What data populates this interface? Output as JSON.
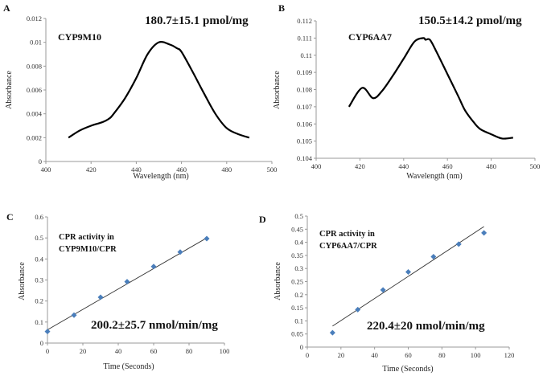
{
  "chart_data": [
    {
      "panel": "A",
      "type": "line",
      "title": "CYP9M10",
      "annotation": "180.7±15.1 pmol/mg",
      "xlabel": "Wavelength  (nm)",
      "ylabel": "Absorbance",
      "xlim": [
        400,
        500
      ],
      "ylim": [
        0,
        0.012
      ],
      "xticks": [
        "400",
        "420",
        "440",
        "460",
        "480",
        "500"
      ],
      "yticks": [
        "0",
        "0.002",
        "0.004",
        "0.006",
        "0.008",
        "0.01",
        "0.012"
      ],
      "x": [
        410,
        415,
        420,
        425,
        428,
        430,
        435,
        440,
        445,
        450,
        455,
        458,
        460,
        465,
        470,
        475,
        480,
        485,
        490
      ],
      "y": [
        0.002,
        0.0026,
        0.003,
        0.0033,
        0.0036,
        0.004,
        0.0053,
        0.007,
        0.009,
        0.01,
        0.0098,
        0.0095,
        0.0092,
        0.0075,
        0.0057,
        0.004,
        0.0028,
        0.0023,
        0.002
      ]
    },
    {
      "panel": "B",
      "type": "line",
      "title": "CYP6AA7",
      "annotation": "150.5±14.2 pmol/mg",
      "xlabel": "Wavelength  (nm)",
      "ylabel": "Absorbance",
      "xlim": [
        400,
        500
      ],
      "ylim": [
        0.104,
        0.112
      ],
      "xticks": [
        "400",
        "420",
        "440",
        "460",
        "480",
        "500"
      ],
      "yticks": [
        "0.104",
        "0.105",
        "0.106",
        "0.107",
        "0.108",
        "0.109",
        "0.11",
        "0.111",
        "0.112"
      ],
      "x": [
        415,
        421,
        426,
        430,
        435,
        440,
        445,
        449,
        450,
        452,
        455,
        460,
        465,
        468,
        472,
        475,
        480,
        485,
        490
      ],
      "y": [
        0.107,
        0.1081,
        0.1075,
        0.1079,
        0.1088,
        0.1098,
        0.1108,
        0.111,
        0.1109,
        0.1109,
        0.1102,
        0.1089,
        0.1076,
        0.1068,
        0.1061,
        0.1057,
        0.1054,
        0.10515,
        0.1052
      ]
    },
    {
      "panel": "C",
      "type": "scatter",
      "title": "CPR activity in",
      "title2": "CYP9M10/CPR",
      "annotation": "200.2±25.7 nmol/min/mg",
      "xlabel": "Time  (Seconds)",
      "ylabel": "Absorbance",
      "xlim": [
        0,
        100
      ],
      "ylim": [
        0,
        0.6
      ],
      "xticks": [
        "0",
        "20",
        "40",
        "60",
        "80",
        "100"
      ],
      "yticks": [
        "0",
        "0.1",
        "0.2",
        "0.3",
        "0.4",
        "0.5",
        "0.6"
      ],
      "x": [
        0,
        15,
        30,
        45,
        60,
        75,
        90
      ],
      "y": [
        0.055,
        0.133,
        0.218,
        0.292,
        0.364,
        0.433,
        0.497
      ],
      "trendline": [
        [
          0,
          0.063
        ],
        [
          90,
          0.5
        ]
      ],
      "marker_color": "#4a7ebb"
    },
    {
      "panel": "D",
      "type": "scatter",
      "title": "CPR activity in",
      "title2": "CYP6AA7/CPR",
      "annotation": "220.4±20 nmol/min/mg",
      "xlabel": "Time  (Seconds)",
      "ylabel": "Absorbance",
      "xlim": [
        0,
        120
      ],
      "ylim": [
        0,
        0.5
      ],
      "xticks": [
        "0",
        "20",
        "40",
        "60",
        "80",
        "100",
        "120"
      ],
      "yticks": [
        "0",
        "0.05",
        "0.1",
        "0.15",
        "0.2",
        "0.25",
        "0.3",
        "0.35",
        "0.4",
        "0.45",
        "0.5"
      ],
      "x": [
        15,
        30,
        45,
        60,
        75,
        90,
        105
      ],
      "y": [
        0.055,
        0.143,
        0.218,
        0.287,
        0.345,
        0.393,
        0.436
      ],
      "trendline": [
        [
          15,
          0.08
        ],
        [
          105,
          0.46
        ]
      ],
      "marker_color": "#4a7ebb"
    }
  ]
}
